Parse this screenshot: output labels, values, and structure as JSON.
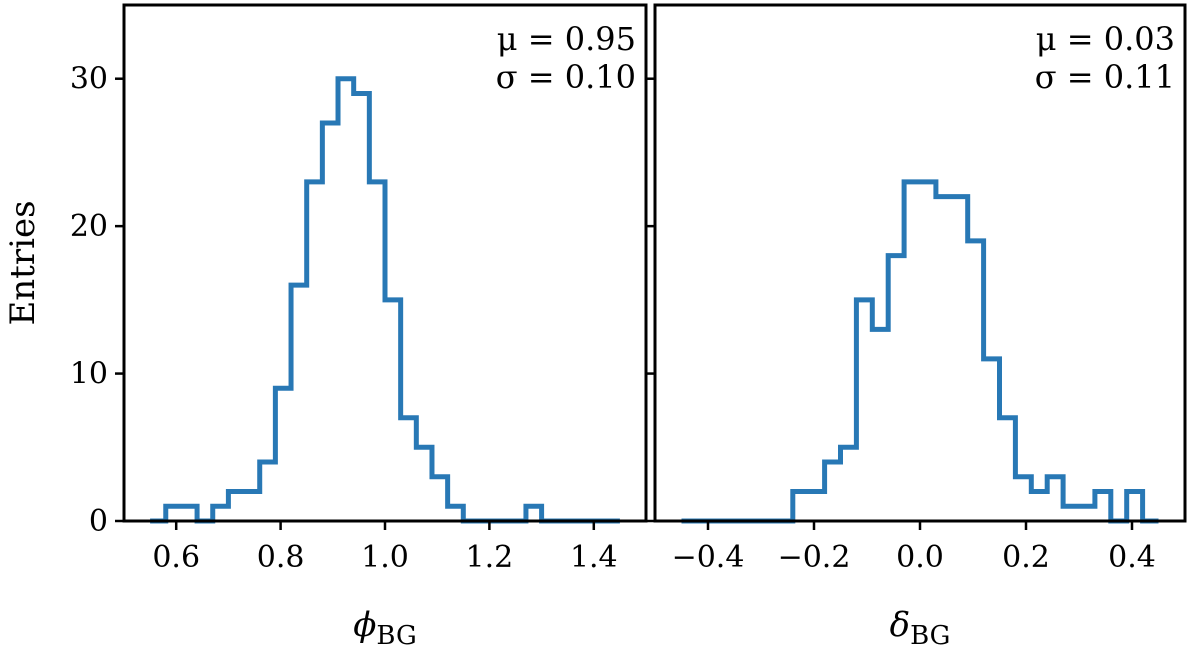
{
  "chart_data": [
    {
      "type": "histogram",
      "ylabel": "Entries",
      "xlabel_symbol": "ϕ",
      "xlabel_subscript": "BG",
      "xlim": [
        0.5,
        1.5
      ],
      "ylim": [
        0,
        35
      ],
      "xticks": [
        0.6,
        0.8,
        1.0,
        1.2,
        1.4
      ],
      "xtick_labels": [
        "0.6",
        "0.8",
        "1.0",
        "1.2",
        "1.4"
      ],
      "yticks": [
        0,
        10,
        20,
        30
      ],
      "ytick_labels": [
        "0",
        "10",
        "20",
        "30"
      ],
      "stats": {
        "mu": "μ = 0.95",
        "sigma": "σ = 0.10"
      },
      "bin_edges": [
        0.55,
        0.58,
        0.61,
        0.64,
        0.67,
        0.7,
        0.73,
        0.76,
        0.79,
        0.82,
        0.85,
        0.88,
        0.91,
        0.94,
        0.97,
        1.0,
        1.03,
        1.06,
        1.09,
        1.12,
        1.15,
        1.18,
        1.21,
        1.24,
        1.27,
        1.3,
        1.33,
        1.36,
        1.39,
        1.42,
        1.45
      ],
      "counts": [
        0,
        1,
        1,
        0,
        1,
        2,
        2,
        4,
        9,
        16,
        23,
        27,
        30,
        29,
        23,
        15,
        7,
        5,
        3,
        1,
        0,
        0,
        0,
        0,
        1,
        0,
        0,
        0,
        0,
        0
      ]
    },
    {
      "type": "histogram",
      "xlabel_symbol": "δ",
      "xlabel_subscript": "BG",
      "xlim": [
        -0.5,
        0.5
      ],
      "ylim": [
        0,
        35
      ],
      "xticks": [
        -0.4,
        -0.2,
        0.0,
        0.2,
        0.4
      ],
      "xtick_labels": [
        "−0.4",
        "−0.2",
        "0.0",
        "0.2",
        "0.4"
      ],
      "yticks": [
        0,
        10,
        20,
        30
      ],
      "stats": {
        "mu": "μ = 0.03",
        "sigma": "σ = 0.11"
      },
      "bin_edges": [
        -0.45,
        -0.42,
        -0.39,
        -0.36,
        -0.33,
        -0.3,
        -0.27,
        -0.24,
        -0.21,
        -0.18,
        -0.15,
        -0.12,
        -0.09,
        -0.06,
        -0.03,
        0.0,
        0.03,
        0.06,
        0.09,
        0.12,
        0.15,
        0.18,
        0.21,
        0.24,
        0.27,
        0.3,
        0.33,
        0.36,
        0.39,
        0.42,
        0.45
      ],
      "counts": [
        0,
        0,
        0,
        0,
        0,
        0,
        0,
        2,
        2,
        4,
        5,
        15,
        13,
        18,
        23,
        23,
        22,
        22,
        19,
        11,
        7,
        3,
        2,
        3,
        1,
        1,
        2,
        0,
        2,
        0
      ]
    }
  ],
  "colors": {
    "series": "#2878b5"
  }
}
